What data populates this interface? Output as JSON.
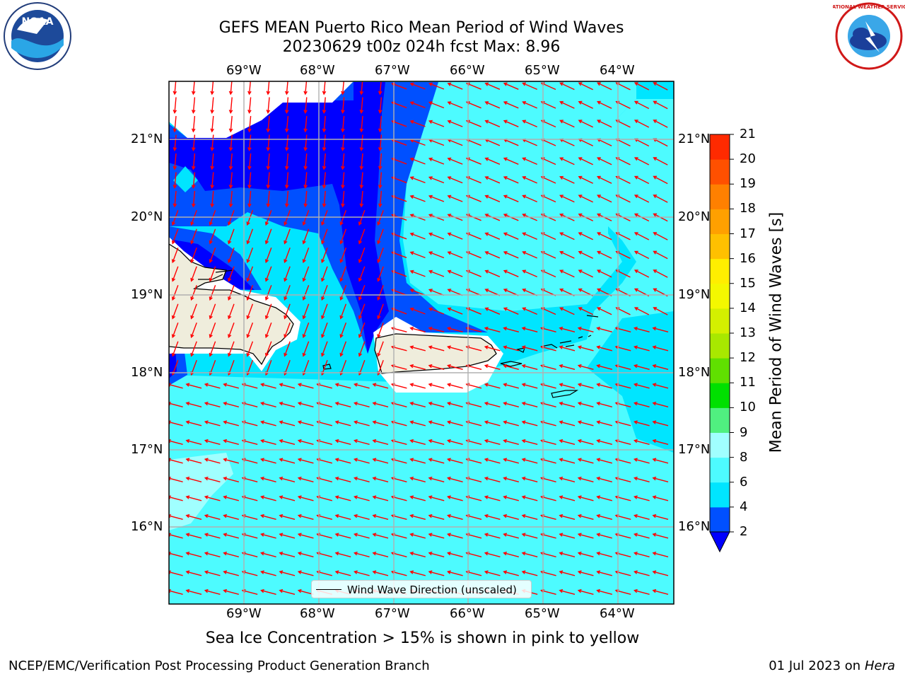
{
  "title": {
    "line1": "GEFS MEAN Puerto Rico Mean Period of Wind Waves",
    "line2": "20230629 t00z 024h fcst   Max: 8.96"
  },
  "axes": {
    "lon_labels": [
      "69°W",
      "68°W",
      "67°W",
      "66°W",
      "65°W",
      "64°W"
    ],
    "lat_labels": [
      "21°N",
      "20°N",
      "19°N",
      "18°N",
      "17°N",
      "16°N"
    ]
  },
  "legend": {
    "label": "Wind Wave Direction (unscaled)"
  },
  "colorbar": {
    "title": "Mean Period of Wind Waves [s]",
    "ticks": [
      "2",
      "4",
      "6",
      "8",
      "9",
      "10",
      "11",
      "12",
      "13",
      "14",
      "15",
      "16",
      "17",
      "18",
      "19",
      "20",
      "21"
    ],
    "colors": [
      "#0050ff",
      "#00e5ff",
      "#4dfbff",
      "#a0ffff",
      "#50f080",
      "#00e000",
      "#60e000",
      "#a8e800",
      "#d4f000",
      "#f4f800",
      "#ffee00",
      "#ffc000",
      "#ffa000",
      "#ff8000",
      "#ff5000",
      "#ff2a00",
      "#ff0000"
    ],
    "under_color": "#0000ff"
  },
  "field_colors": {
    "level_2_4": "#0000ff",
    "level_4_6": "#0050ff",
    "level_6_8": "#00e5ff",
    "level_8_9": "#4dfbff",
    "level_9_10": "#a0ffff",
    "land": "#efeddc",
    "arrow": "#ff0000"
  },
  "ice_note": "Sea Ice Concentration > 15% is shown in pink to yellow",
  "footer": {
    "left": "NCEP/EMC/Verification Post Processing Product Generation Branch",
    "right_prefix": "01 Jul 2023 on ",
    "right_host": "Hera"
  },
  "logos": {
    "noaa": {
      "icon": "noaa-logo-icon",
      "text": "NOAA"
    },
    "nws": {
      "icon": "nws-logo-icon",
      "text": "NATIONAL WEATHER SERVICE"
    }
  }
}
